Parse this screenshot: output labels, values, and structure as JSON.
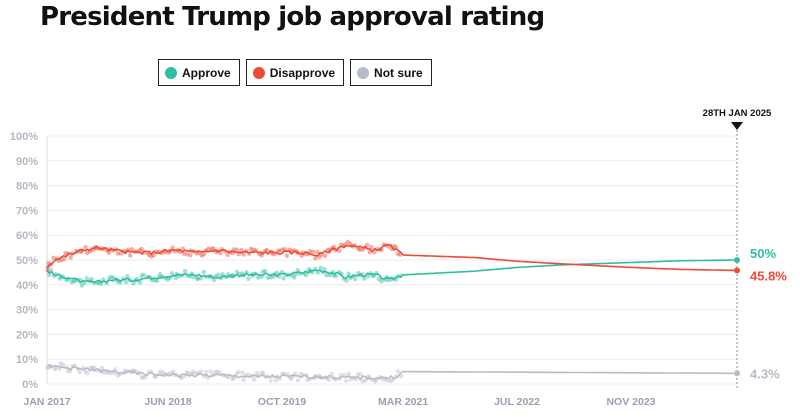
{
  "chart_data": {
    "type": "line",
    "title": "President Trump job approval rating",
    "xlabel": "",
    "ylabel": "",
    "ylim": [
      0,
      100
    ],
    "y_ticks": [
      "0%",
      "10%",
      "20%",
      "30%",
      "40%",
      "50%",
      "60%",
      "70%",
      "80%",
      "90%",
      "100%"
    ],
    "y_tick_values": [
      0,
      10,
      20,
      30,
      40,
      50,
      60,
      70,
      80,
      90,
      100
    ],
    "x_ticks": [
      "JAN 2017",
      "JUN 2018",
      "OCT 2019",
      "MAR 2021",
      "JUL 2022",
      "NOV 2023"
    ],
    "x_tick_values": [
      "2017-01",
      "2018-06",
      "2019-10",
      "2021-03",
      "2022-07",
      "2023-11"
    ],
    "x_range": [
      "2017-01",
      "2025-01-28"
    ],
    "grid": true,
    "legend_position": "top-left",
    "marker": {
      "date": "2025-01-28",
      "label": "28TH JAN 2025"
    },
    "series": [
      {
        "name": "Approve",
        "color": "#2fbf9f",
        "x": [
          "2017-01",
          "2017-02",
          "2017-04",
          "2017-06",
          "2017-08",
          "2017-10",
          "2018-01",
          "2018-04",
          "2018-07",
          "2018-10",
          "2019-01",
          "2019-04",
          "2019-07",
          "2019-10",
          "2020-01",
          "2020-03",
          "2020-05",
          "2020-07",
          "2020-09",
          "2020-11",
          "2021-01",
          "2021-02",
          "2021-03",
          "2022-01",
          "2022-07",
          "2023-01",
          "2023-11",
          "2024-06",
          "2025-01-28"
        ],
        "values": [
          46,
          44,
          43,
          41,
          41,
          42,
          42,
          43,
          44,
          44,
          43,
          44,
          44,
          44,
          45,
          46,
          45,
          43,
          44,
          44,
          42,
          43,
          44,
          45.5,
          47,
          48,
          49,
          49.7,
          50
        ],
        "end_label": "50%"
      },
      {
        "name": "Disapprove",
        "color": "#f04a35",
        "x": [
          "2017-01",
          "2017-02",
          "2017-04",
          "2017-06",
          "2017-08",
          "2017-10",
          "2018-01",
          "2018-04",
          "2018-07",
          "2018-10",
          "2019-01",
          "2019-04",
          "2019-07",
          "2019-10",
          "2020-01",
          "2020-03",
          "2020-05",
          "2020-07",
          "2020-09",
          "2020-11",
          "2021-01",
          "2021-02",
          "2021-03",
          "2022-01",
          "2022-07",
          "2023-01",
          "2023-11",
          "2024-06",
          "2025-01-28"
        ],
        "values": [
          47,
          50,
          52,
          54,
          55,
          54,
          53,
          53,
          54,
          53,
          54,
          53,
          53,
          53,
          53,
          52,
          54,
          56,
          55,
          54,
          56,
          54,
          52,
          51,
          49.5,
          48.5,
          47,
          46.2,
          45.8
        ],
        "end_label": "45.8%"
      },
      {
        "name": "Not sure",
        "color": "#b8bcc8",
        "x": [
          "2017-01",
          "2017-02",
          "2017-06",
          "2017-10",
          "2018-03",
          "2018-08",
          "2019-01",
          "2019-06",
          "2019-10",
          "2020-03",
          "2020-08",
          "2021-01",
          "2021-02",
          "2021-03",
          "2025-01-28"
        ],
        "values": [
          7,
          7,
          6,
          5,
          4,
          3.5,
          3.5,
          3,
          3,
          3,
          2.5,
          2.5,
          3,
          5,
          4.3
        ],
        "end_label": "4.3%"
      }
    ]
  }
}
